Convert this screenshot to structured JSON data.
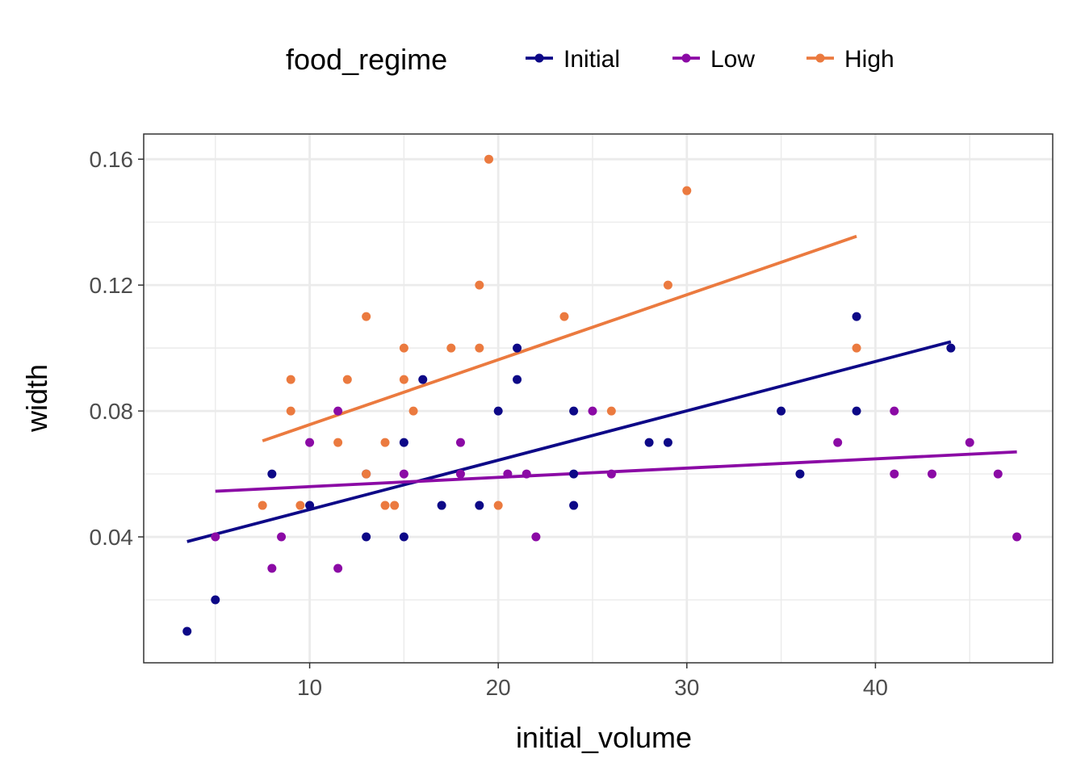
{
  "chart_data": {
    "type": "scatter",
    "title": "",
    "xlabel": "initial_volume",
    "ylabel": "width",
    "xlim": [
      1.2,
      49.4
    ],
    "ylim": [
      0.0,
      0.168
    ],
    "xticks": [
      10,
      20,
      30,
      40
    ],
    "yticks": [
      0.04,
      0.08,
      0.12,
      0.16
    ],
    "xtick_labels": [
      "10",
      "20",
      "30",
      "40"
    ],
    "ytick_labels": [
      "0.04",
      "0.08",
      "0.12",
      "0.16"
    ],
    "grid": true,
    "legend": {
      "title": "food_regime",
      "position": "top"
    },
    "series": [
      {
        "name": "Initial",
        "color": "#0d0887",
        "points": [
          [
            3.5,
            0.01
          ],
          [
            5,
            0.02
          ],
          [
            8,
            0.06
          ],
          [
            10,
            0.05
          ],
          [
            13,
            0.04
          ],
          [
            13,
            0.06
          ],
          [
            15,
            0.04
          ],
          [
            15,
            0.07
          ],
          [
            16,
            0.09
          ],
          [
            17,
            0.05
          ],
          [
            19,
            0.05
          ],
          [
            20,
            0.08
          ],
          [
            21,
            0.09
          ],
          [
            21,
            0.1
          ],
          [
            24,
            0.05
          ],
          [
            24,
            0.06
          ],
          [
            24,
            0.08
          ],
          [
            28,
            0.07
          ],
          [
            29,
            0.07
          ],
          [
            35,
            0.08
          ],
          [
            36,
            0.06
          ],
          [
            39,
            0.08
          ],
          [
            39,
            0.11
          ],
          [
            44,
            0.1
          ]
        ],
        "fit": [
          [
            3.5,
            0.0385
          ],
          [
            44,
            0.102
          ]
        ]
      },
      {
        "name": "Low",
        "color": "#8b0aa5",
        "points": [
          [
            5,
            0.04
          ],
          [
            8,
            0.03
          ],
          [
            8.5,
            0.04
          ],
          [
            10,
            0.07
          ],
          [
            11.5,
            0.03
          ],
          [
            11.5,
            0.08
          ],
          [
            15,
            0.06
          ],
          [
            18,
            0.06
          ],
          [
            18,
            0.07
          ],
          [
            20.5,
            0.06
          ],
          [
            21.5,
            0.06
          ],
          [
            22,
            0.04
          ],
          [
            25,
            0.08
          ],
          [
            26,
            0.06
          ],
          [
            38,
            0.07
          ],
          [
            41,
            0.06
          ],
          [
            41,
            0.08
          ],
          [
            43,
            0.06
          ],
          [
            45,
            0.07
          ],
          [
            46.5,
            0.06
          ],
          [
            47.5,
            0.04
          ]
        ],
        "fit": [
          [
            5,
            0.0545
          ],
          [
            47.5,
            0.067
          ]
        ]
      },
      {
        "name": "High",
        "color": "#eb7a3f",
        "points": [
          [
            7.5,
            0.05
          ],
          [
            9,
            0.08
          ],
          [
            9,
            0.09
          ],
          [
            9.5,
            0.05
          ],
          [
            11.5,
            0.07
          ],
          [
            12,
            0.09
          ],
          [
            13,
            0.06
          ],
          [
            13,
            0.11
          ],
          [
            14,
            0.05
          ],
          [
            14,
            0.07
          ],
          [
            14.5,
            0.05
          ],
          [
            15,
            0.09
          ],
          [
            15,
            0.1
          ],
          [
            15.5,
            0.08
          ],
          [
            17.5,
            0.1
          ],
          [
            19,
            0.1
          ],
          [
            19,
            0.12
          ],
          [
            19.5,
            0.16
          ],
          [
            20,
            0.05
          ],
          [
            23.5,
            0.11
          ],
          [
            26,
            0.08
          ],
          [
            29,
            0.12
          ],
          [
            30,
            0.15
          ],
          [
            39,
            0.1
          ]
        ],
        "fit": [
          [
            7.5,
            0.0705
          ],
          [
            39,
            0.1355
          ]
        ]
      }
    ]
  }
}
